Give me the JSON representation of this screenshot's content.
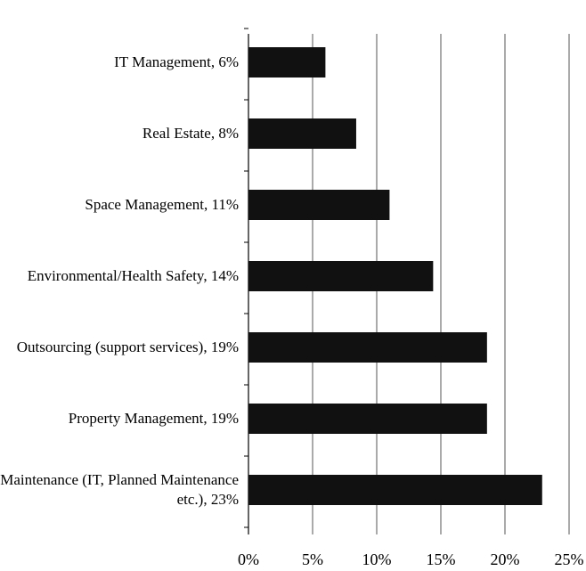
{
  "chart_data": {
    "type": "barh",
    "categories": [
      "IT Management, 6%",
      "Real Estate, 8%",
      "Space Management, 11%",
      "Environmental/Health Safety, 14%",
      "Outsourcing (support services), 19%",
      "Property Management, 19%",
      "Maintenance (IT, Planned Maintenance etc.), 23%"
    ],
    "values": [
      6,
      8.4,
      11,
      14.4,
      18.6,
      18.6,
      22.9
    ],
    "color": "#111111",
    "xlim": [
      0,
      25
    ],
    "xticks": [
      {
        "value": 0,
        "label": "0%"
      },
      {
        "value": 5,
        "label": "5%"
      },
      {
        "value": 10,
        "label": "10%"
      },
      {
        "value": 15,
        "label": "15%"
      },
      {
        "value": 20,
        "label": "20%"
      },
      {
        "value": 25,
        "label": "25%"
      }
    ],
    "grid": true
  }
}
